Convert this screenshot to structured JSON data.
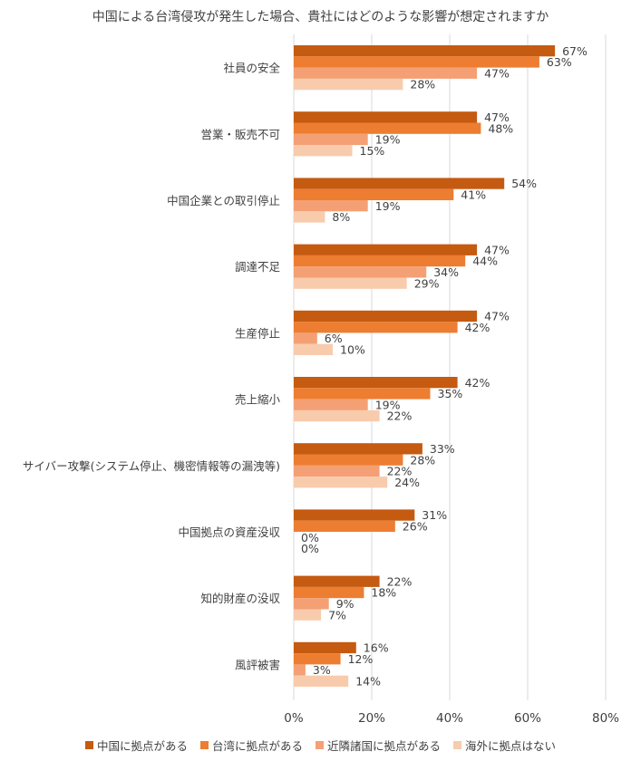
{
  "chart_data": {
    "type": "bar",
    "orientation": "horizontal",
    "title": "中国による台湾侵攻が発生した場合、貴社にはどのような影響が想定されますか",
    "categories": [
      "社員の安全",
      "営業・販売不可",
      "中国企業との取引停止",
      "調達不足",
      "生産停止",
      "売上縮小",
      "サイバー攻撃(システム停止、機密情報等の漏洩等)",
      "中国拠点の資産没収",
      "知的財産の没収",
      "風評被害"
    ],
    "series": [
      {
        "name": "中国に拠点がある",
        "color": "#C55A11",
        "values": [
          67,
          47,
          54,
          47,
          47,
          42,
          33,
          31,
          22,
          16
        ]
      },
      {
        "name": "台湾に拠点がある",
        "color": "#ED7D31",
        "values": [
          63,
          48,
          41,
          44,
          42,
          35,
          28,
          26,
          18,
          12
        ]
      },
      {
        "name": "近隣諸国に拠点がある",
        "color": "#F4A074",
        "values": [
          47,
          19,
          19,
          34,
          6,
          19,
          22,
          0,
          9,
          3
        ]
      },
      {
        "name": "海外に拠点はない",
        "color": "#F8CBAD",
        "values": [
          28,
          15,
          8,
          29,
          10,
          22,
          24,
          0,
          7,
          14
        ]
      }
    ],
    "xlim": [
      0,
      80
    ],
    "xticks": [
      "0%",
      "20%",
      "40%",
      "60%",
      "80%"
    ],
    "value_suffix": "%",
    "grid": true,
    "legend_position": "bottom"
  }
}
